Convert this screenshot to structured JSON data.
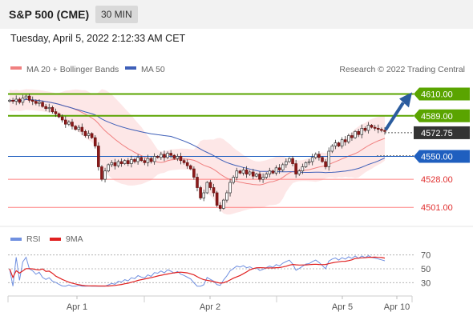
{
  "header": {
    "title": "S&P 500 (CME)",
    "timeframe": "30 MIN",
    "timestamp": "Tuesday, April 5, 2022 2:12:33 AM CET"
  },
  "legend": {
    "ma20": "MA 20 + Bollinger Bands",
    "ma50": "MA 50",
    "credit": "Research © 2022 Trading Central",
    "rsi": "RSI",
    "rsi_ma": "9MA"
  },
  "colors": {
    "resistance": "#5aa400",
    "support": "#ff8080",
    "pivot": "#1f5fbf",
    "price": "#333333",
    "arrow": "#2b5c9e",
    "ma20": "#f08080",
    "ma50": "#3e5fb8",
    "bollinger_fill": "#fde3e3",
    "rsi": "#7090e0",
    "rsi_ma": "#e02020"
  },
  "chart_data": [
    {
      "type": "candlestick",
      "y_range": [
        4485,
        4625
      ],
      "x_labels": [
        "Apr 1",
        "Apr 2",
        "Apr 5",
        "Apr 10"
      ],
      "levels": [
        {
          "label": "4610.00",
          "value": 4610,
          "kind": "resistance"
        },
        {
          "label": "4589.00",
          "value": 4589,
          "kind": "resistance"
        },
        {
          "label": "4572.75",
          "value": 4572.75,
          "kind": "last_price"
        },
        {
          "label": "4550.00",
          "value": 4550,
          "kind": "pivot"
        },
        {
          "label": "4528.00",
          "value": 4528,
          "kind": "support"
        },
        {
          "label": "4501.00",
          "value": 4501,
          "kind": "support"
        }
      ],
      "closes": [
        4604,
        4603,
        4605,
        4602,
        4606,
        4608,
        4604,
        4603,
        4601,
        4602,
        4598,
        4596,
        4597,
        4593,
        4591,
        4588,
        4585,
        4581,
        4583,
        4579,
        4576,
        4578,
        4574,
        4570,
        4572,
        4568,
        4560,
        4540,
        4528,
        4536,
        4542,
        4544,
        4541,
        4545,
        4543,
        4546,
        4543,
        4547,
        4545,
        4549,
        4546,
        4544,
        4548,
        4545,
        4550,
        4549,
        4552,
        4549,
        4553,
        4551,
        4548,
        4550,
        4546,
        4544,
        4541,
        4538,
        4530,
        4520,
        4510,
        4515,
        4525,
        4520,
        4515,
        4503,
        4500,
        4508,
        4515,
        4525,
        4530,
        4536,
        4534,
        4537,
        4533,
        4535,
        4531,
        4533,
        4528,
        4530,
        4533,
        4536,
        4534,
        4539,
        4537,
        4542,
        4545,
        4548,
        4543,
        4533,
        4536,
        4540,
        4544,
        4545,
        4549,
        4552,
        4549,
        4545,
        4540,
        4555,
        4560,
        4563,
        4560,
        4566,
        4564,
        4570,
        4568,
        4574,
        4571,
        4577,
        4575,
        4580,
        4578,
        4577,
        4576,
        4575,
        4574
      ]
    },
    {
      "type": "line",
      "title": "RSI",
      "y_ticks": [
        70,
        50,
        30
      ],
      "series_names": [
        "RSI",
        "9MA"
      ]
    }
  ]
}
